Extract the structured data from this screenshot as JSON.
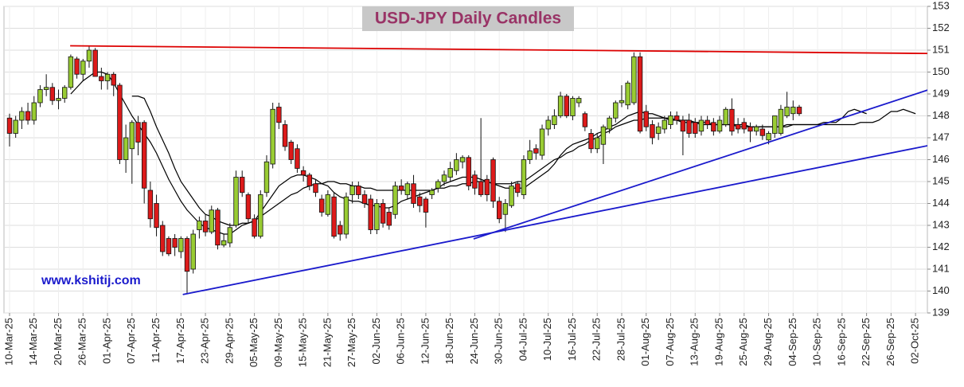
{
  "chart_data": {
    "type": "candlestick",
    "title": "USD-JPY Daily Candles",
    "watermark": "www.kshitij.com",
    "categories": [
      "10-Mar-25",
      null,
      null,
      null,
      "14-Mar-25",
      null,
      null,
      null,
      "20-Mar-25",
      null,
      null,
      null,
      "26-Mar-25",
      null,
      null,
      null,
      "01-Apr-25",
      null,
      null,
      null,
      "07-Apr-25",
      null,
      null,
      null,
      "11-Apr-25",
      null,
      null,
      null,
      "17-Apr-25",
      null,
      null,
      null,
      "23-Apr-25",
      null,
      null,
      null,
      "29-Apr-25",
      null,
      null,
      null,
      "05-May-25",
      null,
      null,
      null,
      "09-May-25",
      null,
      null,
      null,
      "15-May-25",
      null,
      null,
      null,
      "21-May-25",
      null,
      null,
      null,
      "27-May-25",
      null,
      null,
      null,
      "02-Jun-25",
      null,
      null,
      null,
      "06-Jun-25",
      null,
      null,
      null,
      "12-Jun-25",
      null,
      null,
      null,
      "18-Jun-25",
      null,
      null,
      null,
      "24-Jun-25",
      null,
      null,
      null,
      "30-Jun-25",
      null,
      null,
      null,
      "04-Jul-25",
      null,
      null,
      null,
      "10-Jul-25",
      null,
      null,
      null,
      "16-Jul-25",
      null,
      null,
      null,
      "22-Jul-25",
      null,
      null,
      null,
      "28-Jul-25",
      null,
      null,
      null,
      "01-Aug-25",
      null,
      null,
      null,
      "07-Aug-25",
      null,
      null,
      null,
      "13-Aug-25",
      null,
      null,
      null,
      "19-Aug-25",
      null,
      null,
      null,
      "25-Aug-25",
      null,
      null,
      null,
      "29-Aug-25",
      null,
      null,
      null,
      "04-Sep-25",
      null,
      null,
      null,
      "10-Sep-25",
      null,
      null,
      null,
      "16-Sep-25",
      null,
      null,
      null,
      "22-Sep-25",
      null,
      null,
      null,
      "26-Sep-25",
      null,
      null,
      null,
      "02-Oct-25"
    ],
    "open": [
      147.9,
      147.2,
      147.8,
      148.2,
      147.8,
      148.6,
      149.2,
      149.3,
      148.7,
      148.8,
      149.3,
      150.6,
      149.9,
      150.5,
      151.0,
      149.8,
      149.6,
      149.9,
      149.4,
      146.0,
      146.5,
      147.7,
      147.7,
      144.6,
      144.0,
      143.0,
      142.4,
      142.4,
      141.8,
      142.4,
      141.0,
      142.8,
      143.2,
      142.7,
      143.7,
      142.1,
      142.2,
      143.0,
      145.2,
      144.4,
      143.3,
      142.5,
      144.5,
      145.8,
      148.4,
      147.6,
      146.8,
      146.5,
      145.5,
      145.3,
      144.9,
      144.2,
      143.5,
      144.3,
      143.0,
      142.6,
      144.4,
      144.8,
      144.4,
      144.2,
      142.8,
      144.0,
      143.6,
      143.5,
      144.8,
      144.4,
      144.9,
      144.3,
      144.2,
      144.4,
      144.7,
      145.0,
      145.2,
      145.5,
      145.9,
      146.1,
      145.3,
      145.0,
      145.1,
      146.0,
      144.1,
      143.5,
      143.9,
      144.9,
      144.4,
      146.0,
      146.5,
      146.2,
      147.4,
      147.6,
      148.0,
      148.9,
      148.0,
      148.6,
      148.1,
      147.2,
      146.5,
      146.7,
      147.4,
      147.9,
      148.6,
      148.5,
      148.6,
      150.7,
      148.2,
      147.6,
      147.2,
      147.4,
      147.6,
      148.0,
      147.8,
      147.8,
      147.7,
      147.3,
      147.8,
      147.7,
      147.3,
      147.6,
      148.3,
      147.6,
      147.7,
      147.5,
      147.3,
      147.4,
      146.9,
      147.2,
      147.2,
      148.0,
      148.1,
      148.4,
      null,
      null,
      null,
      null,
      null,
      null,
      null,
      null,
      null,
      null,
      null,
      null,
      null,
      null,
      null,
      null,
      null,
      null,
      null
    ],
    "high": [
      148.1,
      148.0,
      148.4,
      148.6,
      148.9,
      149.4,
      149.9,
      149.5,
      149.2,
      149.4,
      150.8,
      150.7,
      150.6,
      151.2,
      151.1,
      150.2,
      150.0,
      150.0,
      149.5,
      147.6,
      147.8,
      148.0,
      147.8,
      145.0,
      144.4,
      143.2,
      142.5,
      142.6,
      142.5,
      142.5,
      142.8,
      143.4,
      143.5,
      143.9,
      143.8,
      142.6,
      143.1,
      145.5,
      145.5,
      144.5,
      143.5,
      144.6,
      146.2,
      148.6,
      148.6,
      147.8,
      146.9,
      146.7,
      145.7,
      145.4,
      145.1,
      144.4,
      144.6,
      144.5,
      143.2,
      144.5,
      145.0,
      145.0,
      144.6,
      144.4,
      144.2,
      144.2,
      143.8,
      145.0,
      145.1,
      145.0,
      145.3,
      144.5,
      144.3,
      144.7,
      145.1,
      145.5,
      145.9,
      146.3,
      146.2,
      146.2,
      145.5,
      147.9,
      145.3,
      146.1,
      144.3,
      144.2,
      145.0,
      145.0,
      146.2,
      146.9,
      146.7,
      147.6,
      148.0,
      148.3,
      149.1,
      149.0,
      148.9,
      148.9,
      148.2,
      147.4,
      147.2,
      147.6,
      148.0,
      148.7,
      149.4,
      149.6,
      150.9,
      150.9,
      148.5,
      147.8,
      147.7,
      148.0,
      148.2,
      148.2,
      148.0,
      148.1,
      147.9,
      148.0,
      148.0,
      147.9,
      148.0,
      148.4,
      148.8,
      147.9,
      147.9,
      147.7,
      147.6,
      147.6,
      147.3,
      148.0,
      148.5,
      149.1,
      148.7,
      148.5,
      null,
      null,
      null,
      null,
      null,
      null,
      null,
      null,
      null,
      null,
      null,
      null,
      null,
      null,
      null,
      null,
      null,
      null,
      null
    ],
    "low": [
      146.6,
      147.0,
      147.4,
      147.6,
      147.6,
      148.4,
      148.9,
      148.5,
      148.3,
      148.6,
      149.2,
      149.7,
      149.6,
      150.2,
      149.8,
      149.2,
      149.2,
      148.9,
      145.8,
      145.4,
      144.9,
      146.2,
      144.0,
      142.9,
      142.5,
      141.6,
      141.6,
      141.6,
      141.5,
      139.9,
      140.8,
      142.4,
      142.5,
      142.6,
      141.9,
      142.0,
      142.0,
      142.9,
      144.3,
      143.1,
      142.4,
      142.4,
      144.3,
      145.6,
      147.4,
      146.4,
      145.8,
      145.4,
      145.0,
      144.6,
      144.3,
      143.4,
      143.4,
      142.4,
      142.3,
      142.4,
      144.0,
      144.2,
      143.8,
      142.6,
      142.6,
      142.9,
      142.8,
      143.3,
      144.4,
      144.2,
      143.8,
      143.6,
      142.9,
      144.2,
      144.5,
      144.8,
      145.0,
      145.3,
      145.6,
      144.6,
      144.4,
      144.3,
      144.1,
      143.8,
      143.1,
      142.7,
      143.8,
      144.3,
      144.2,
      145.8,
      146.0,
      146.0,
      147.1,
      147.4,
      147.9,
      147.9,
      147.8,
      148.4,
      147.3,
      146.3,
      146.3,
      145.8,
      147.2,
      147.7,
      148.4,
      148.3,
      148.5,
      147.2,
      147.3,
      146.7,
      146.9,
      147.2,
      147.4,
      147.6,
      146.2,
      147.0,
      147.0,
      147.1,
      147.4,
      147.1,
      147.2,
      147.5,
      147.1,
      147.2,
      147.2,
      146.8,
      147.1,
      146.9,
      146.7,
      147.0,
      147.1,
      147.9,
      147.8,
      148.0,
      null,
      null,
      null,
      null,
      null,
      null,
      null,
      null,
      null,
      null,
      null,
      null,
      null,
      null,
      null,
      null,
      null,
      null,
      null
    ],
    "close": [
      147.2,
      147.8,
      148.2,
      147.8,
      148.6,
      149.2,
      149.3,
      148.7,
      148.8,
      149.3,
      150.7,
      149.9,
      150.5,
      151.0,
      149.8,
      149.6,
      149.9,
      149.4,
      146.0,
      147.0,
      147.7,
      146.8,
      144.7,
      143.3,
      142.9,
      141.8,
      141.7,
      142.0,
      142.4,
      140.9,
      142.6,
      143.2,
      142.7,
      143.7,
      142.1,
      142.3,
      142.9,
      145.2,
      144.5,
      143.3,
      142.5,
      144.4,
      145.9,
      148.3,
      147.7,
      146.6,
      146.0,
      145.6,
      145.3,
      144.8,
      144.5,
      143.6,
      144.4,
      142.5,
      142.6,
      144.3,
      144.8,
      144.4,
      144.0,
      142.8,
      144.0,
      143.1,
      143.0,
      144.8,
      144.6,
      144.9,
      144.0,
      143.9,
      143.6,
      144.6,
      145.0,
      145.3,
      145.6,
      146.0,
      146.1,
      144.8,
      144.7,
      144.4,
      144.4,
      144.1,
      143.3,
      144.0,
      144.8,
      144.5,
      146.0,
      146.4,
      146.3,
      147.4,
      147.8,
      148.0,
      148.9,
      148.0,
      148.8,
      148.8,
      147.5,
      146.5,
      147.0,
      147.5,
      147.9,
      148.6,
      148.7,
      149.5,
      150.7,
      147.3,
      147.5,
      147.0,
      147.5,
      147.8,
      148.0,
      147.8,
      147.3,
      147.2,
      147.2,
      147.8,
      147.6,
      147.3,
      147.8,
      148.3,
      147.3,
      147.4,
      147.4,
      147.3,
      147.5,
      147.1,
      147.2,
      148.0,
      148.3,
      148.4,
      148.4,
      148.1,
      null,
      null,
      null,
      null,
      null,
      null,
      null,
      null,
      null,
      null,
      null,
      null,
      null,
      null,
      null,
      null,
      null,
      null,
      null
    ],
    "up_color": "#99cc33",
    "down_color": "#dd1a1a",
    "lines": [
      {
        "color": "#000000",
        "values": [
          null,
          null,
          null,
          null,
          null,
          null,
          null,
          null,
          null,
          null,
          149.0,
          149.3,
          149.6,
          149.8,
          150.0,
          150.0,
          149.9,
          149.5,
          149.0,
          148.5,
          148.0,
          147.6,
          147.2,
          146.8,
          146.3,
          145.7,
          145.1,
          144.6,
          144.1,
          143.7,
          143.4,
          143.1,
          142.9,
          142.8,
          142.7,
          142.6,
          142.6,
          142.8,
          143.0,
          143.1,
          143.2,
          143.6,
          144.0,
          144.4,
          144.8,
          145.0,
          145.2,
          145.3,
          145.3,
          145.2,
          145.1,
          144.9,
          144.8,
          144.5,
          144.3,
          144.2,
          144.1,
          144.1,
          144.0,
          143.9,
          143.9,
          143.8,
          143.8,
          143.9,
          144.1,
          144.2,
          144.3,
          144.4,
          144.5,
          144.6,
          144.7,
          144.9,
          145.0,
          145.1,
          145.2,
          145.2,
          145.2,
          145.1,
          145.0,
          144.9,
          144.8,
          144.7,
          144.7,
          144.7,
          144.7,
          144.9,
          145.1,
          145.3,
          145.5,
          145.8,
          146.2,
          146.5,
          146.7,
          146.8,
          146.9,
          147.0,
          147.2,
          147.3,
          147.5,
          147.6,
          147.8,
          148.0,
          148.1,
          148.2,
          148.1,
          148.1,
          148.0,
          147.9,
          147.8,
          147.8,
          147.7,
          147.7,
          147.7,
          147.6,
          147.6,
          147.6,
          147.6,
          147.6,
          147.6,
          147.6,
          147.6,
          147.5,
          147.5,
          147.5,
          147.5,
          147.5,
          147.5,
          147.6,
          147.6,
          147.6,
          147.6,
          147.6,
          147.6,
          147.7,
          147.7,
          147.7,
          147.9,
          148.2,
          148.3,
          148.2,
          148.1,
          null,
          null,
          null,
          null,
          null,
          null,
          null,
          null
        ]
      },
      {
        "color": "#000000",
        "values": [
          null,
          null,
          null,
          null,
          null,
          null,
          null,
          null,
          null,
          null,
          null,
          null,
          null,
          null,
          null,
          null,
          null,
          null,
          null,
          null,
          148.9,
          148.9,
          148.8,
          148.2,
          147.5,
          146.9,
          146.3,
          145.6,
          145.0,
          144.6,
          144.2,
          143.8,
          143.5,
          143.4,
          143.2,
          143.1,
          143.0,
          143.0,
          143.1,
          143.1,
          143.2,
          143.4,
          143.6,
          143.8,
          144.0,
          144.2,
          144.4,
          144.5,
          144.7,
          144.8,
          144.9,
          144.9,
          145.0,
          145.0,
          144.9,
          144.9,
          144.8,
          144.8,
          144.7,
          144.7,
          144.6,
          144.6,
          144.6,
          144.6,
          144.6,
          144.6,
          144.6,
          144.6,
          144.6,
          144.6,
          144.7,
          144.7,
          144.8,
          144.8,
          144.9,
          144.9,
          145.0,
          145.0,
          145.0,
          144.9,
          144.9,
          144.9,
          144.9,
          145.0,
          145.0,
          145.2,
          145.4,
          145.6,
          145.8,
          146.0,
          146.1,
          146.3,
          146.4,
          146.6,
          146.7,
          146.9,
          147.0,
          147.2,
          147.3,
          147.5,
          147.6,
          147.7,
          147.8,
          147.8,
          147.9,
          147.9,
          147.9,
          147.9,
          147.9,
          147.8,
          147.8,
          147.8,
          147.7,
          147.7,
          147.7,
          147.6,
          147.6,
          147.6,
          147.6,
          147.5,
          147.5,
          147.5,
          147.5,
          147.5,
          147.5,
          147.5,
          147.5,
          147.5,
          147.6,
          147.6,
          147.6,
          147.6,
          147.6,
          147.6,
          147.6,
          147.6,
          147.6,
          147.6,
          147.6,
          147.7,
          147.7,
          147.7,
          147.8,
          148.0,
          148.2,
          148.2,
          148.3,
          148.2,
          148.1
        ]
      }
    ],
    "trendlines": [
      {
        "color": "#dd0000",
        "start": [
          9.9,
          151.2
        ],
        "end": [
          150,
          150.85
        ]
      },
      {
        "color": "#1a1acc",
        "start": [
          75.8,
          142.38
        ],
        "end": [
          150,
          149.18
        ]
      },
      {
        "color": "#1a1acc",
        "start": [
          28.3,
          139.84
        ],
        "end": [
          150,
          146.64
        ]
      }
    ],
    "ylim": [
      139,
      153
    ],
    "yticks": [
      139,
      140,
      141,
      142,
      143,
      144,
      145,
      146,
      147,
      148,
      149,
      150,
      151,
      152,
      153
    ],
    "grid": true
  }
}
